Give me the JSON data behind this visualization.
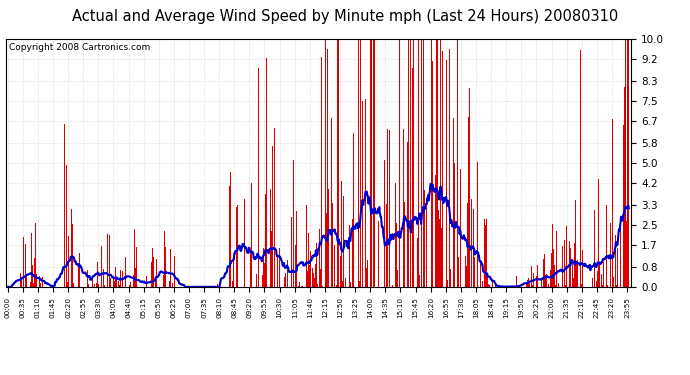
{
  "title": "Actual and Average Wind Speed by Minute mph (Last 24 Hours) 20080310",
  "copyright": "Copyright 2008 Cartronics.com",
  "yticks": [
    0.0,
    0.8,
    1.7,
    2.5,
    3.3,
    4.2,
    5.0,
    5.8,
    6.7,
    7.5,
    8.3,
    9.2,
    10.0
  ],
  "ylim": [
    0.0,
    10.0
  ],
  "bar_color": "#dd0000",
  "line_color": "#0000cc",
  "bg_color": "#ffffff",
  "grid_color": "#aaaaaa",
  "title_fontsize": 10.5,
  "copyright_fontsize": 6.5,
  "xtick_fontsize": 5.2,
  "ytick_fontsize": 7.5
}
